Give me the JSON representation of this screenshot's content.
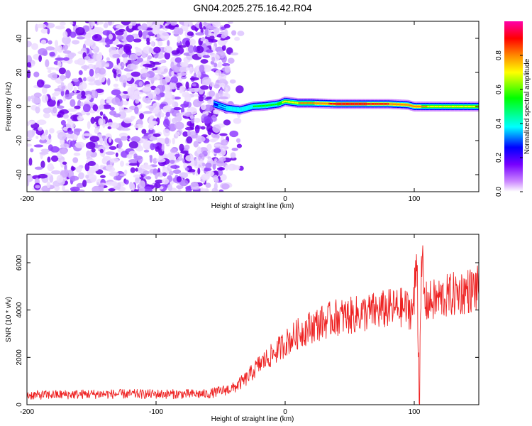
{
  "figure": {
    "title": "GN04.2025.275.16.42.R04"
  },
  "chart_data": [
    {
      "type": "heatmap",
      "title": "GN04.2025.275.16.42.R04",
      "xlabel": "Height of straight line (km)",
      "ylabel": "Frequency (Hz)",
      "xlim": [
        -200,
        150
      ],
      "ylim": [
        -50,
        50
      ],
      "xticks": [
        -200,
        -100,
        0,
        100
      ],
      "yticks": [
        -40,
        -20,
        0,
        20,
        40
      ],
      "colorbar": {
        "label": "Normalized spectral amplitude",
        "range": [
          0,
          1
        ],
        "ticks": [
          0.0,
          0.2,
          0.4,
          0.6,
          0.8
        ],
        "colors": [
          "#ffffff",
          "#cc88ff",
          "#7700ff",
          "#0000ff",
          "#00ffff",
          "#00ff00",
          "#ffff00",
          "#ff8800",
          "#ff0000",
          "#ff00aa"
        ]
      },
      "noise_region_x": [
        -200,
        -45
      ],
      "ridge": {
        "x": [
          -55,
          -45,
          -35,
          -25,
          -15,
          -5,
          0,
          10,
          20,
          40,
          60,
          80,
          95,
          100,
          110,
          130,
          150
        ],
        "freq": [
          1.5,
          -1,
          -2,
          0,
          0.5,
          1.5,
          3,
          2,
          2,
          1.5,
          1.5,
          1.5,
          1,
          0,
          0,
          0,
          0
        ],
        "amplitude": [
          0.35,
          0.45,
          0.5,
          0.55,
          0.6,
          0.65,
          0.75,
          0.8,
          0.8,
          0.95,
          0.95,
          0.9,
          0.85,
          0.85,
          0.8,
          0.75,
          0.7
        ]
      }
    },
    {
      "type": "line",
      "xlabel": "Height of straight line (km)",
      "ylabel": "SNR (10 * v/v)",
      "xlim": [
        -200,
        150
      ],
      "ylim": [
        0,
        7200
      ],
      "xticks": [
        -200,
        -100,
        0,
        100
      ],
      "yticks": [
        0,
        2000,
        4000,
        6000
      ],
      "color": "#ee2222",
      "series": [
        {
          "name": "SNR",
          "x": [
            -200,
            -150,
            -100,
            -60,
            -40,
            -30,
            -20,
            -10,
            0,
            10,
            20,
            30,
            40,
            50,
            60,
            70,
            80,
            90,
            98,
            100,
            102,
            104,
            106,
            108,
            110,
            120,
            130,
            140,
            150
          ],
          "y": [
            400,
            450,
            450,
            450,
            700,
            1100,
            1700,
            2100,
            2600,
            3000,
            3300,
            3500,
            3700,
            3750,
            3850,
            3950,
            4050,
            4100,
            4000,
            4300,
            6500,
            300,
            6200,
            4400,
            4300,
            4500,
            4650,
            4800,
            4900
          ]
        }
      ]
    }
  ]
}
